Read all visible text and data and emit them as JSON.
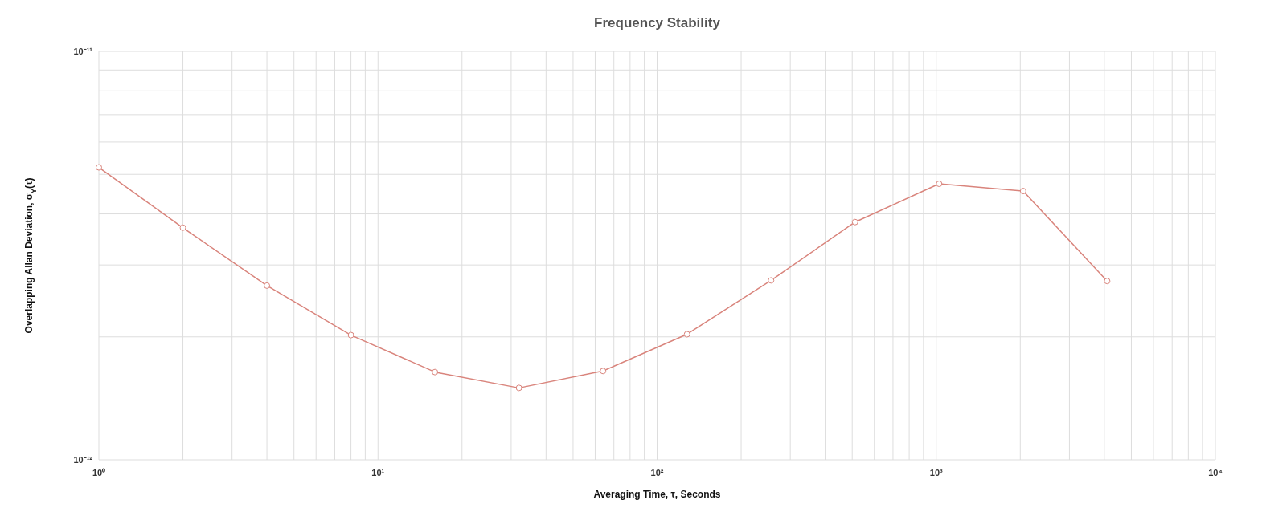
{
  "chart_data": {
    "type": "line",
    "title": "Frequency Stability",
    "xlabel": "Averaging Time, τ, Seconds",
    "ylabel": "Overlapping Allan Deviation, σ$_{Y}$(τ)",
    "x": [
      1,
      2,
      4,
      8,
      16,
      32,
      64,
      128,
      256,
      512,
      1024,
      2048,
      4096
    ],
    "series": [
      {
        "color": "#d9847c",
        "values": [
          5.2e-12,
          3.7e-12,
          2.67e-12,
          2.02e-12,
          1.64e-12,
          1.5e-12,
          1.65e-12,
          2.03e-12,
          2.75e-12,
          3.82e-12,
          4.74e-12,
          4.55e-12,
          2.74e-12
        ]
      }
    ],
    "log": "xy",
    "xlim": [
      1,
      10000
    ],
    "ylim": [
      1e-12,
      1e-11
    ],
    "xticks": [
      {
        "value": 1,
        "label": "10⁰"
      },
      {
        "value": 2,
        "label": null
      },
      {
        "value": 3,
        "label": null
      },
      {
        "value": 4,
        "label": null
      },
      {
        "value": 5,
        "label": null
      },
      {
        "value": 6,
        "label": null
      },
      {
        "value": 7,
        "label": null
      },
      {
        "value": 8,
        "label": null
      },
      {
        "value": 9,
        "label": null
      },
      {
        "value": 10,
        "label": "10¹"
      },
      {
        "value": 20,
        "label": null
      },
      {
        "value": 30,
        "label": null
      },
      {
        "value": 40,
        "label": null
      },
      {
        "value": 50,
        "label": null
      },
      {
        "value": 60,
        "label": null
      },
      {
        "value": 70,
        "label": null
      },
      {
        "value": 80,
        "label": null
      },
      {
        "value": 90,
        "label": null
      },
      {
        "value": 100,
        "label": "10²"
      },
      {
        "value": 200,
        "label": null
      },
      {
        "value": 300,
        "label": null
      },
      {
        "value": 400,
        "label": null
      },
      {
        "value": 500,
        "label": null
      },
      {
        "value": 600,
        "label": null
      },
      {
        "value": 700,
        "label": null
      },
      {
        "value": 800,
        "label": null
      },
      {
        "value": 900,
        "label": null
      },
      {
        "value": 1000,
        "label": "10³"
      },
      {
        "value": 2000,
        "label": null
      },
      {
        "value": 3000,
        "label": null
      },
      {
        "value": 4000,
        "label": null
      },
      {
        "value": 5000,
        "label": null
      },
      {
        "value": 6000,
        "label": null
      },
      {
        "value": 7000,
        "label": null
      },
      {
        "value": 8000,
        "label": null
      },
      {
        "value": 9000,
        "label": null
      },
      {
        "value": 10000,
        "label": "10⁴"
      }
    ],
    "yticks": [
      {
        "value": 1e-12,
        "label": "10⁻¹²"
      },
      {
        "value": 2e-12,
        "label": null
      },
      {
        "value": 3e-12,
        "label": null
      },
      {
        "value": 4e-12,
        "label": null
      },
      {
        "value": 5e-12,
        "label": null
      },
      {
        "value": 6e-12,
        "label": null
      },
      {
        "value": 7e-12,
        "label": null
      },
      {
        "value": 8e-12,
        "label": null
      },
      {
        "value": 9e-12,
        "label": null
      },
      {
        "value": 1e-11,
        "label": "10⁻¹¹"
      }
    ],
    "grid": true,
    "marker": "circle",
    "line_style": "solid"
  }
}
